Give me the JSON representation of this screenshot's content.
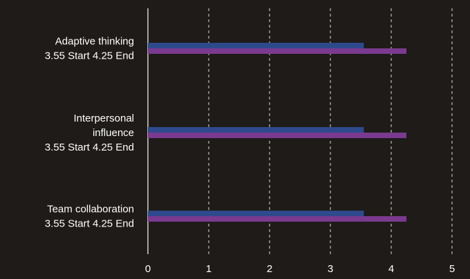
{
  "chart_data": {
    "type": "bar",
    "orientation": "horizontal",
    "categories": [
      [
        "Adaptive thinking",
        "3.55 Start 4.25 End"
      ],
      [
        "Interpersonal",
        "influence",
        "3.55 Start 4.25 End"
      ],
      [
        "Team collaboration",
        "3.55 Start 4.25 End"
      ]
    ],
    "series": [
      {
        "values": [
          3.55,
          3.55,
          3.55
        ],
        "color": "#2e4a8c"
      },
      {
        "values": [
          4.25,
          4.25,
          4.25
        ],
        "color": "#7a3a8f"
      }
    ],
    "x_ticks": [
      "0",
      "1",
      "2",
      "3",
      "4",
      "5"
    ],
    "xlim": [
      0,
      5
    ],
    "grid": true,
    "legend": "none",
    "colors": {
      "background": "#1e1b18",
      "text": "#ffffff",
      "axis": "#ffffff",
      "grid": "#ffffff"
    }
  }
}
